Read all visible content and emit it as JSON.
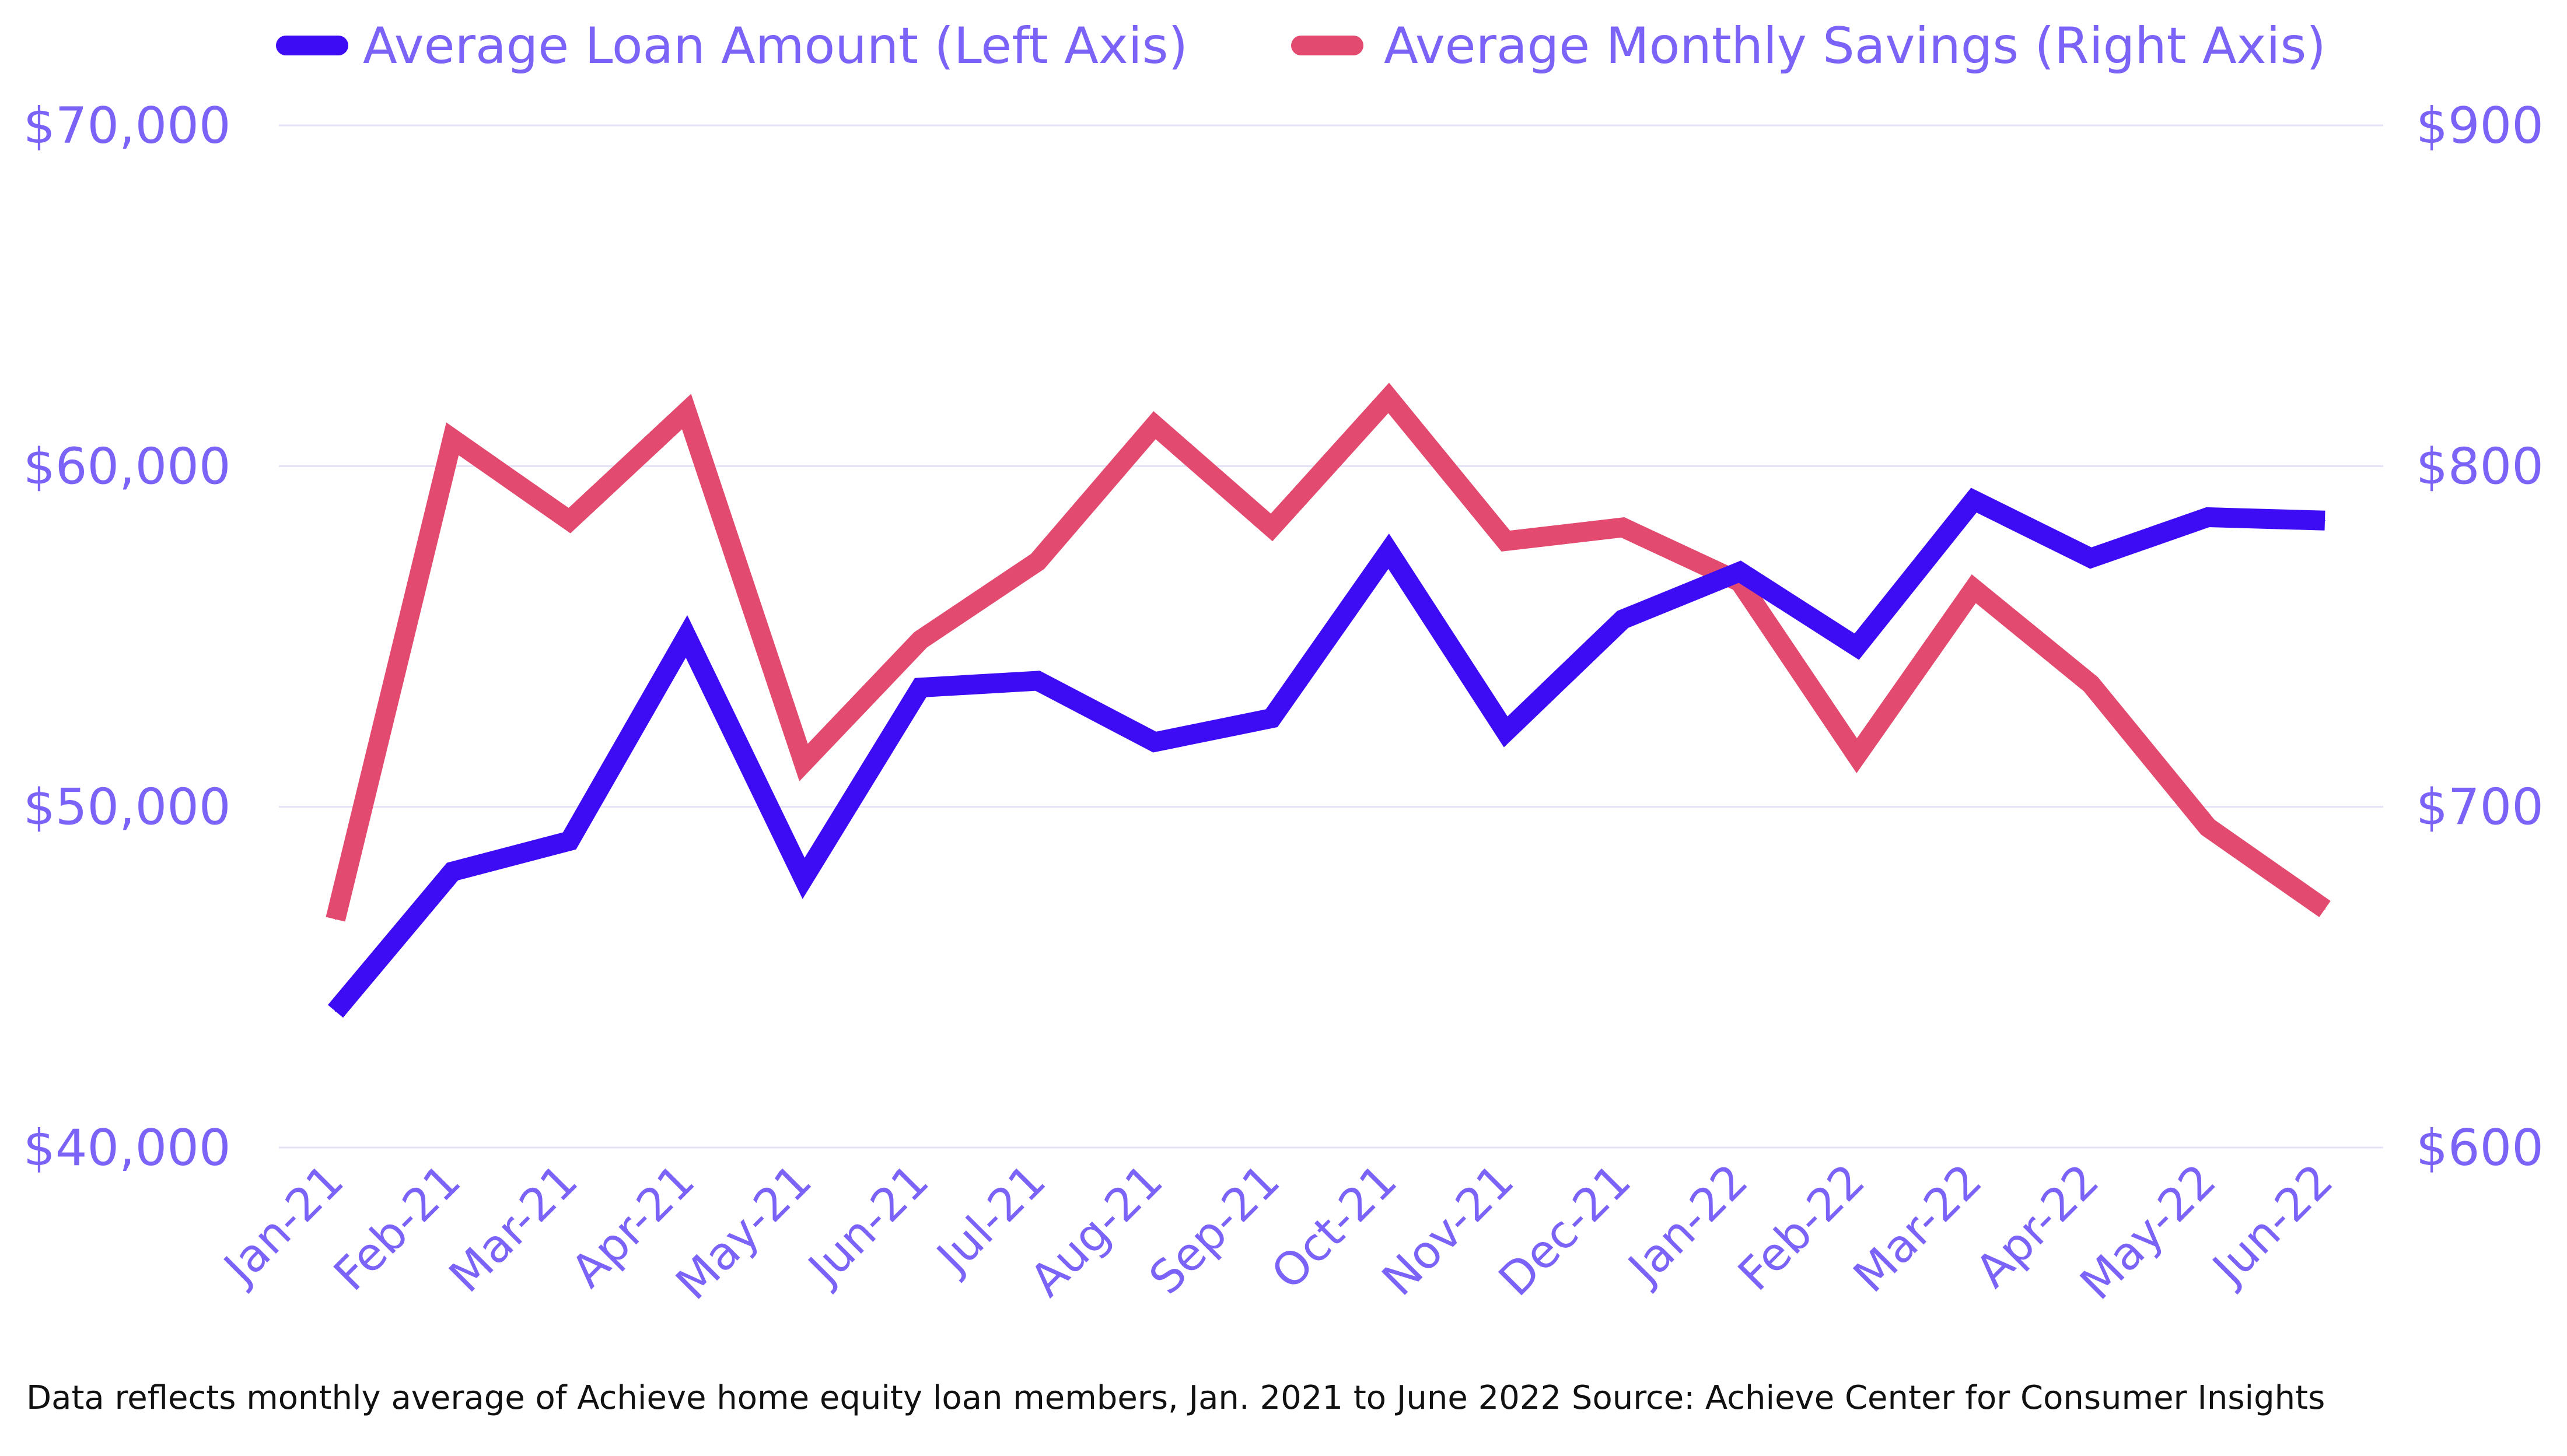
{
  "colors": {
    "loan": "#3d0cf5",
    "savings": "#e34a6f",
    "axis_text": "#7b63f7",
    "gridline": "#e4e2f7",
    "footnote": "#111111"
  },
  "legend": {
    "loan_label": "Average Loan Amount (Left Axis)",
    "savings_label": "Average Monthly Savings (Right Axis)"
  },
  "footnote": "Data reflects monthly average of Achieve home equity loan members, Jan. 2021 to June 2022 Source: Achieve Center for Consumer Insights",
  "chart_data": {
    "type": "line",
    "title": "",
    "xlabel": "",
    "categories": [
      "Jan-21",
      "Feb-21",
      "Mar-21",
      "Apr-21",
      "May-21",
      "Jun-21",
      "Jul-21",
      "Aug-21",
      "Sep-21",
      "Oct-21",
      "Nov-21",
      "Dec-21",
      "Jan-22",
      "Feb-22",
      "Mar-22",
      "Apr-22",
      "May-22",
      "Jun-22"
    ],
    "left_axis": {
      "ylim": [
        40000,
        70000
      ],
      "ticks": [
        40000,
        50000,
        60000,
        70000
      ],
      "tick_labels": [
        "$40,000",
        "$50,000",
        "$60,000",
        "$70,000"
      ]
    },
    "right_axis": {
      "ylim": [
        600,
        900
      ],
      "ticks": [
        600,
        700,
        800,
        900
      ],
      "tick_labels": [
        "$600",
        "$700",
        "$800",
        "$900"
      ]
    },
    "grid": true,
    "legend_position": "top",
    "series": [
      {
        "name": "Average Loan Amount (Left Axis)",
        "axis": "left",
        "values": [
          44000,
          48100,
          49000,
          55000,
          47900,
          53500,
          53700,
          51900,
          52600,
          57500,
          52200,
          55500,
          56900,
          54700,
          59000,
          57300,
          58500,
          58400
        ]
      },
      {
        "name": "Average Monthly Savings (Right Axis)",
        "axis": "right",
        "values": [
          667,
          808,
          784,
          816,
          713,
          749,
          772,
          812,
          782,
          820,
          778,
          782,
          766,
          715,
          764,
          736,
          694,
          670
        ]
      }
    ]
  }
}
